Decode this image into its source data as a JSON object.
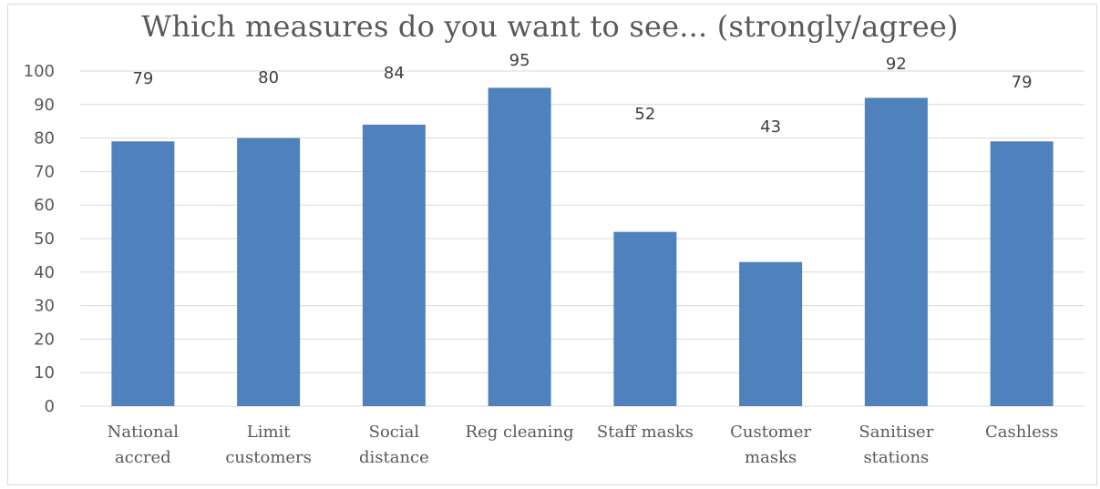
{
  "chart_data": {
    "type": "bar",
    "title": "Which measures do you want to see... (strongly/agree)",
    "categories": [
      [
        "National",
        "accred"
      ],
      [
        "Limit",
        "customers"
      ],
      [
        "Social",
        "distance"
      ],
      [
        "Reg cleaning"
      ],
      [
        "Staff masks"
      ],
      [
        "Customer",
        "masks"
      ],
      [
        "Sanitiser",
        "stations"
      ],
      [
        "Cashless"
      ]
    ],
    "values": [
      79,
      80,
      84,
      95,
      52,
      43,
      92,
      79
    ],
    "data_labels": [
      "79",
      "80",
      "84",
      "95",
      "52",
      "43",
      "92",
      "79"
    ],
    "ylim": [
      0,
      100
    ],
    "yticks": [
      0,
      10,
      20,
      30,
      40,
      50,
      60,
      70,
      80,
      90,
      100
    ],
    "grid": true,
    "legend": "none",
    "bar_color": "#4f81bd",
    "grid_color": "#d9d9d9"
  }
}
